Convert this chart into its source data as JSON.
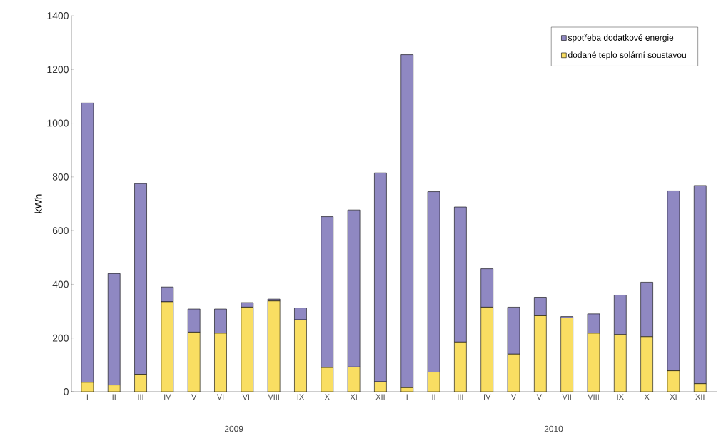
{
  "chart_data": {
    "type": "bar",
    "stacked": true,
    "ylabel": "kWh",
    "categories": [
      "I",
      "II",
      "III",
      "IV",
      "V",
      "VI",
      "VII",
      "VIII",
      "IX",
      "X",
      "XI",
      "XII",
      "I",
      "II",
      "III",
      "IV",
      "V",
      "VI",
      "VII",
      "VIII",
      "IX",
      "X",
      "XI",
      "XII"
    ],
    "series": [
      {
        "name": "dodané teplo solární soustavou",
        "color": "#f9de62",
        "values": [
          35,
          25,
          65,
          335,
          222,
          218,
          315,
          338,
          268,
          90,
          92,
          37,
          15,
          73,
          185,
          315,
          140,
          283,
          275,
          218,
          213,
          205,
          78,
          30
        ]
      },
      {
        "name": "spotřeba dodatkové energie",
        "color": "#8f88c2",
        "values": [
          1040,
          415,
          710,
          55,
          86,
          90,
          17,
          7,
          44,
          562,
          585,
          778,
          1240,
          672,
          503,
          143,
          175,
          69,
          5,
          72,
          147,
          203,
          670,
          738
        ]
      }
    ],
    "ylim": [
      0,
      1400
    ],
    "yticks": [
      0,
      200,
      400,
      600,
      800,
      1000,
      1200,
      1400
    ],
    "legend": "top right",
    "grid": false,
    "annotations": [
      "2009",
      "2010"
    ]
  }
}
